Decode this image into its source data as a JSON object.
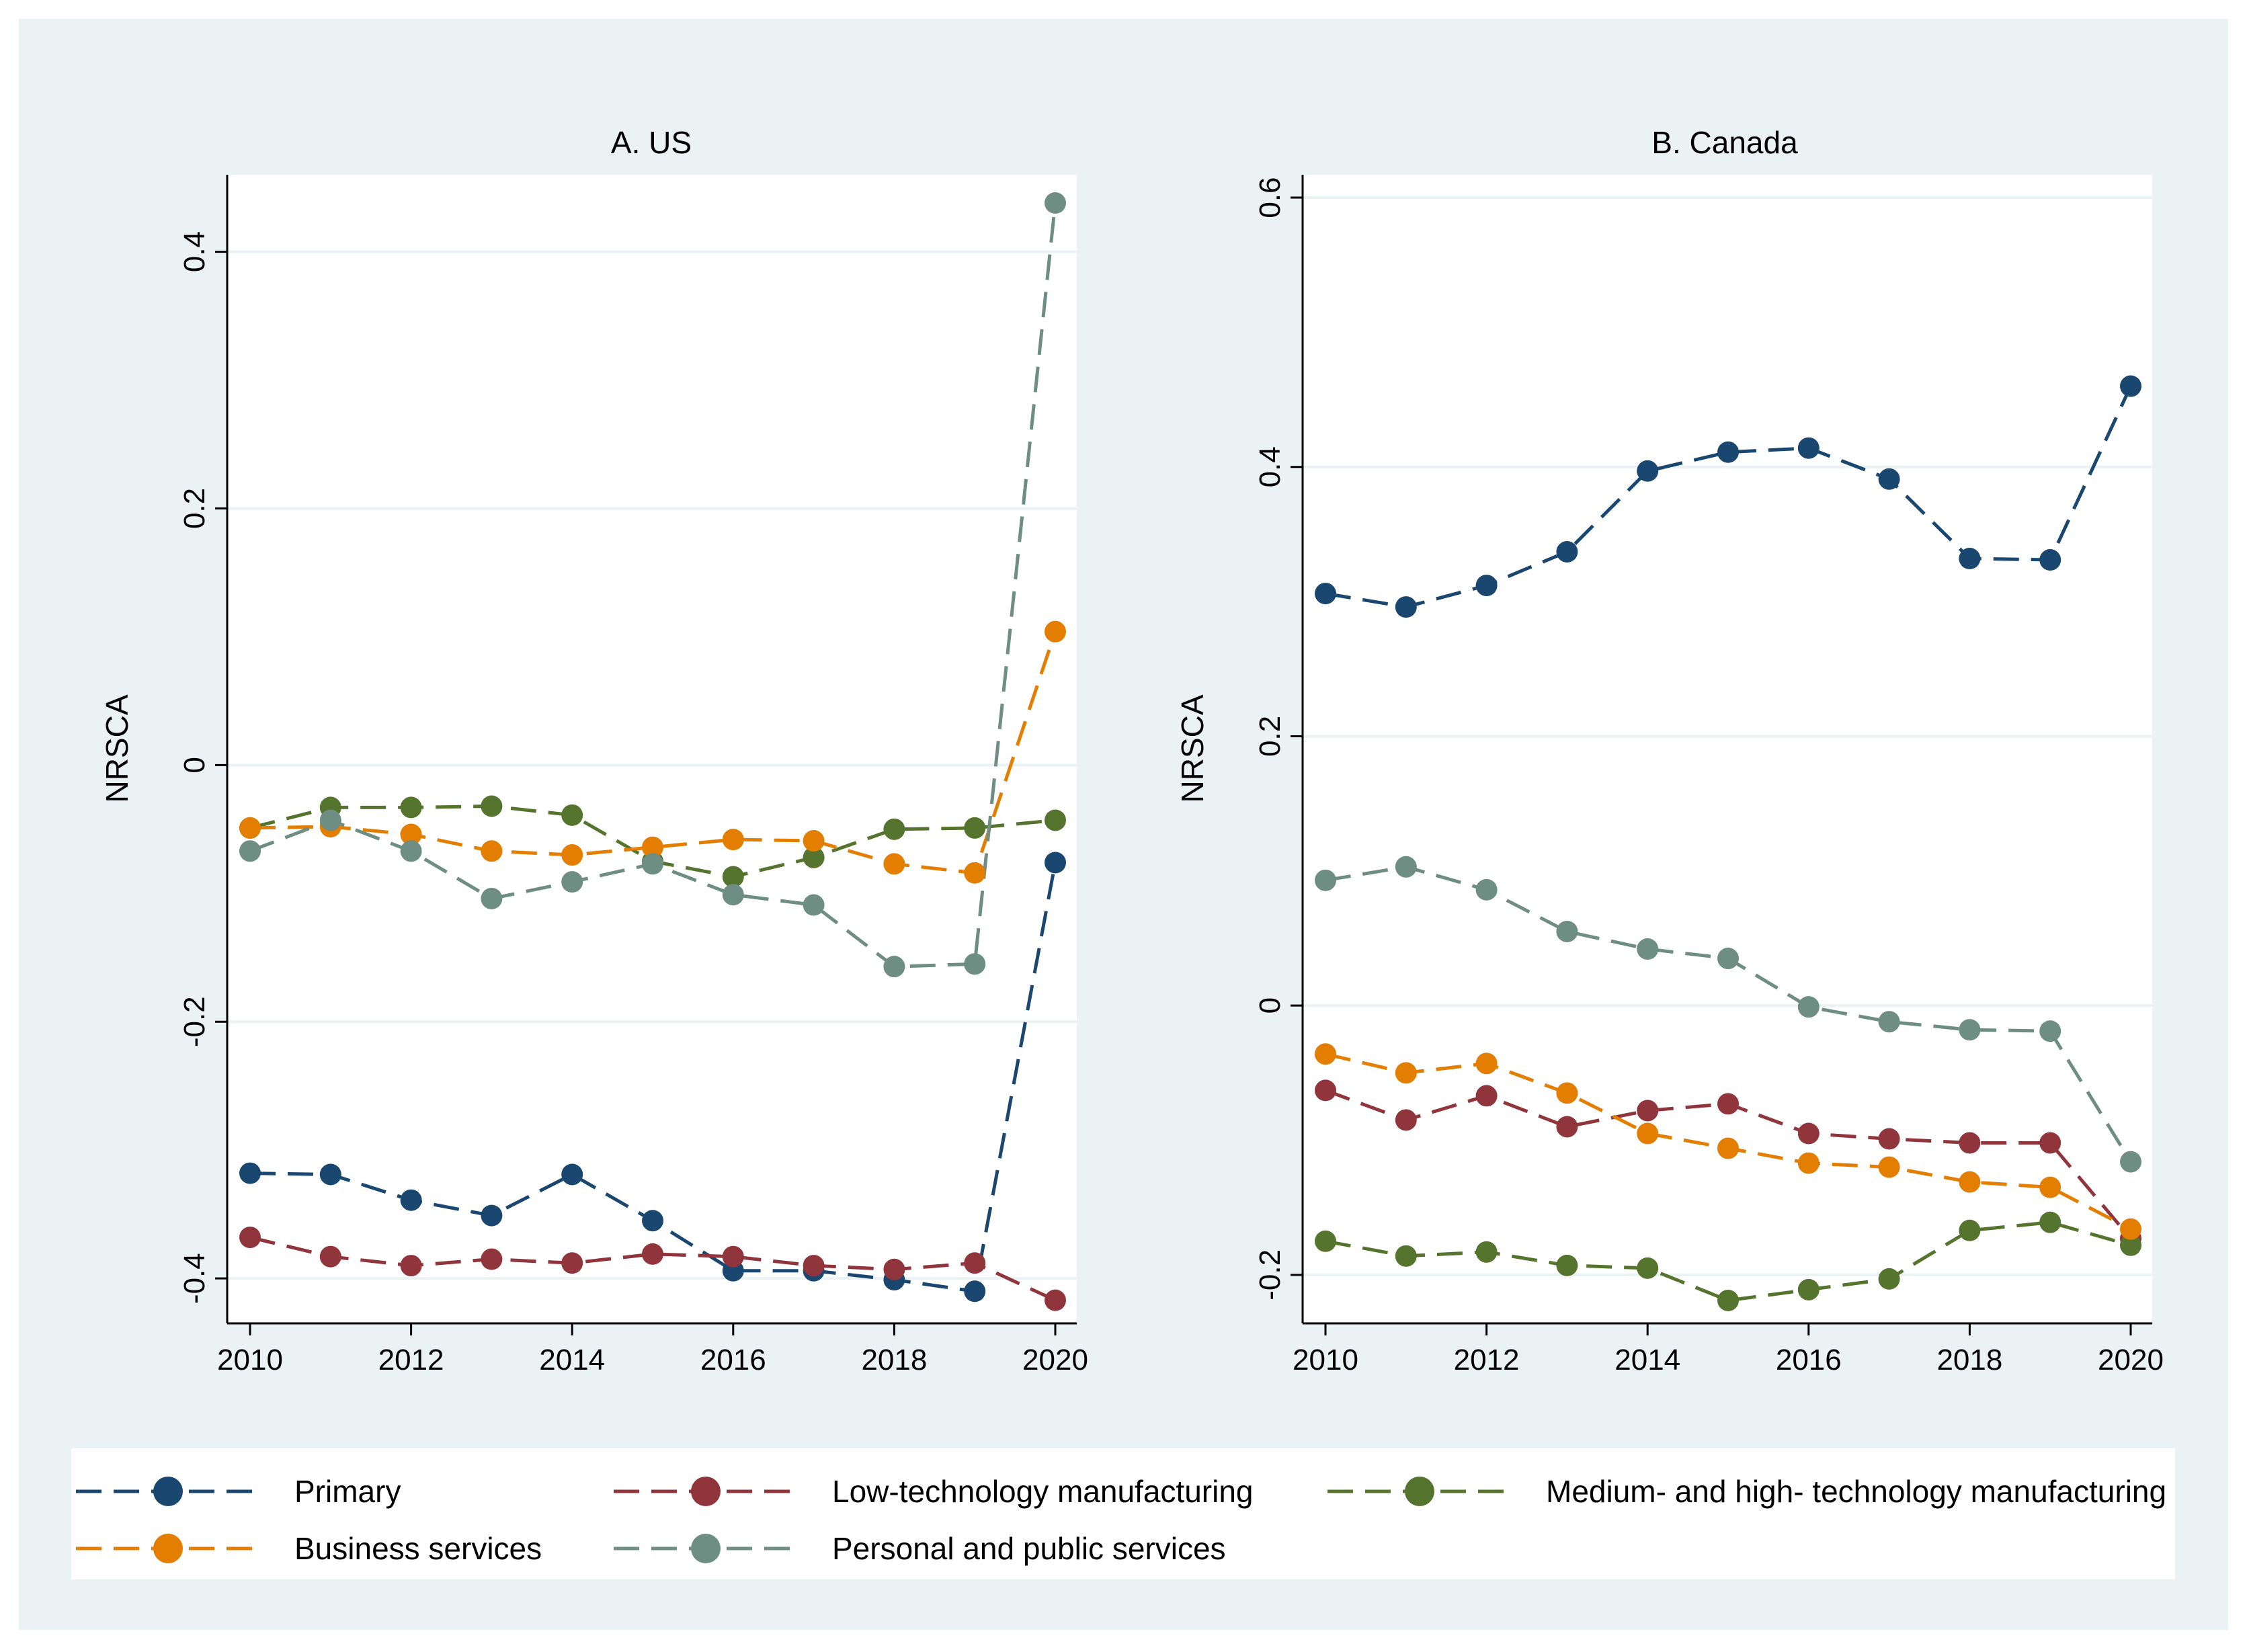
{
  "chart_data": [
    {
      "type": "line",
      "panel": "A",
      "title": "A. US",
      "xlabel": "",
      "ylabel": "NRSCA",
      "xlim": [
        2010,
        2020
      ],
      "ylim": [
        -0.435,
        0.46
      ],
      "xticks": [
        2010,
        2012,
        2014,
        2016,
        2018,
        2020
      ],
      "xtick_labels": [
        "2010",
        "2012",
        "2014",
        "2016",
        "2018",
        "2020"
      ],
      "yticks": [
        -0.4,
        -0.2,
        0,
        0.2,
        0.4
      ],
      "ytick_labels": [
        "-0.4",
        "-0.2",
        "0",
        "0.2",
        "0.4"
      ],
      "grid": true,
      "x": [
        2010,
        2011,
        2012,
        2013,
        2014,
        2015,
        2016,
        2017,
        2018,
        2019,
        2020
      ],
      "series": [
        {
          "name": "Primary",
          "color": "#1a476f",
          "values": [
            -0.318,
            -0.319,
            -0.339,
            -0.351,
            -0.319,
            -0.355,
            -0.394,
            -0.394,
            -0.401,
            -0.41,
            -0.076
          ]
        },
        {
          "name": "Low-technology manufacturing",
          "color": "#90353b",
          "values": [
            -0.368,
            -0.383,
            -0.39,
            -0.385,
            -0.388,
            -0.381,
            -0.383,
            -0.39,
            -0.393,
            -0.388,
            -0.417
          ]
        },
        {
          "name": "Medium- and high- technology manufacturing",
          "color": "#55752f",
          "values": [
            -0.049,
            -0.033,
            -0.033,
            -0.032,
            -0.039,
            -0.075,
            -0.087,
            -0.072,
            -0.05,
            -0.049,
            -0.043
          ]
        },
        {
          "name": "Business services",
          "color": "#e37e00",
          "values": [
            -0.049,
            -0.048,
            -0.054,
            -0.067,
            -0.07,
            -0.064,
            -0.058,
            -0.059,
            -0.077,
            -0.084,
            0.104
          ]
        },
        {
          "name": "Personal and public services",
          "color": "#6e8e84",
          "values": [
            -0.067,
            -0.043,
            -0.067,
            -0.104,
            -0.091,
            -0.077,
            -0.101,
            -0.109,
            -0.157,
            -0.155,
            0.438
          ]
        }
      ]
    },
    {
      "type": "line",
      "panel": "B",
      "title": "B. Canada",
      "xlabel": "",
      "ylabel": "NRSCA",
      "xlim": [
        2010,
        2020
      ],
      "ylim": [
        -0.236,
        0.617
      ],
      "xticks": [
        2010,
        2012,
        2014,
        2016,
        2018,
        2020
      ],
      "xtick_labels": [
        "2010",
        "2012",
        "2014",
        "2016",
        "2018",
        "2020"
      ],
      "yticks": [
        -0.2,
        0,
        0.2,
        0.4,
        0.6
      ],
      "ytick_labels": [
        "-0.2",
        "0",
        "0.2",
        "0.4",
        "0.6"
      ],
      "grid": true,
      "x": [
        2010,
        2011,
        2012,
        2013,
        2014,
        2015,
        2016,
        2017,
        2018,
        2019,
        2020
      ],
      "series": [
        {
          "name": "Primary",
          "color": "#1a476f",
          "values": [
            0.306,
            0.296,
            0.312,
            0.337,
            0.397,
            0.411,
            0.414,
            0.391,
            0.332,
            0.331,
            0.46
          ]
        },
        {
          "name": "Low-technology manufacturing",
          "color": "#90353b",
          "values": [
            -0.063,
            -0.085,
            -0.067,
            -0.09,
            -0.078,
            -0.073,
            -0.095,
            -0.099,
            -0.102,
            -0.102,
            -0.173
          ]
        },
        {
          "name": "Medium- and high- technology manufacturing",
          "color": "#55752f",
          "values": [
            -0.175,
            -0.186,
            -0.183,
            -0.193,
            -0.195,
            -0.219,
            -0.211,
            -0.203,
            -0.167,
            -0.161,
            -0.178
          ]
        },
        {
          "name": "Business services",
          "color": "#e37e00",
          "values": [
            -0.036,
            -0.05,
            -0.043,
            -0.065,
            -0.095,
            -0.106,
            -0.117,
            -0.12,
            -0.131,
            -0.135,
            -0.166
          ]
        },
        {
          "name": "Personal and public services",
          "color": "#6e8e84",
          "values": [
            0.093,
            0.103,
            0.086,
            0.055,
            0.042,
            0.035,
            -0.001,
            -0.012,
            -0.018,
            -0.019,
            -0.116
          ]
        }
      ]
    }
  ],
  "legend": {
    "placement": "bottom",
    "items": [
      {
        "label": "Primary",
        "color": "#1a476f"
      },
      {
        "label": "Low-technology manufacturing",
        "color": "#90353b"
      },
      {
        "label": "Medium- and high- technology manufacturing",
        "color": "#55752f"
      },
      {
        "label": "Business services",
        "color": "#e37e00"
      },
      {
        "label": "Personal and public services",
        "color": "#6e8e84"
      }
    ]
  },
  "colors": {
    "outer_background": "#eaf2f3",
    "plot_background": "#ffffff",
    "gridline": "#eaf2f3",
    "axis": "#000000"
  }
}
